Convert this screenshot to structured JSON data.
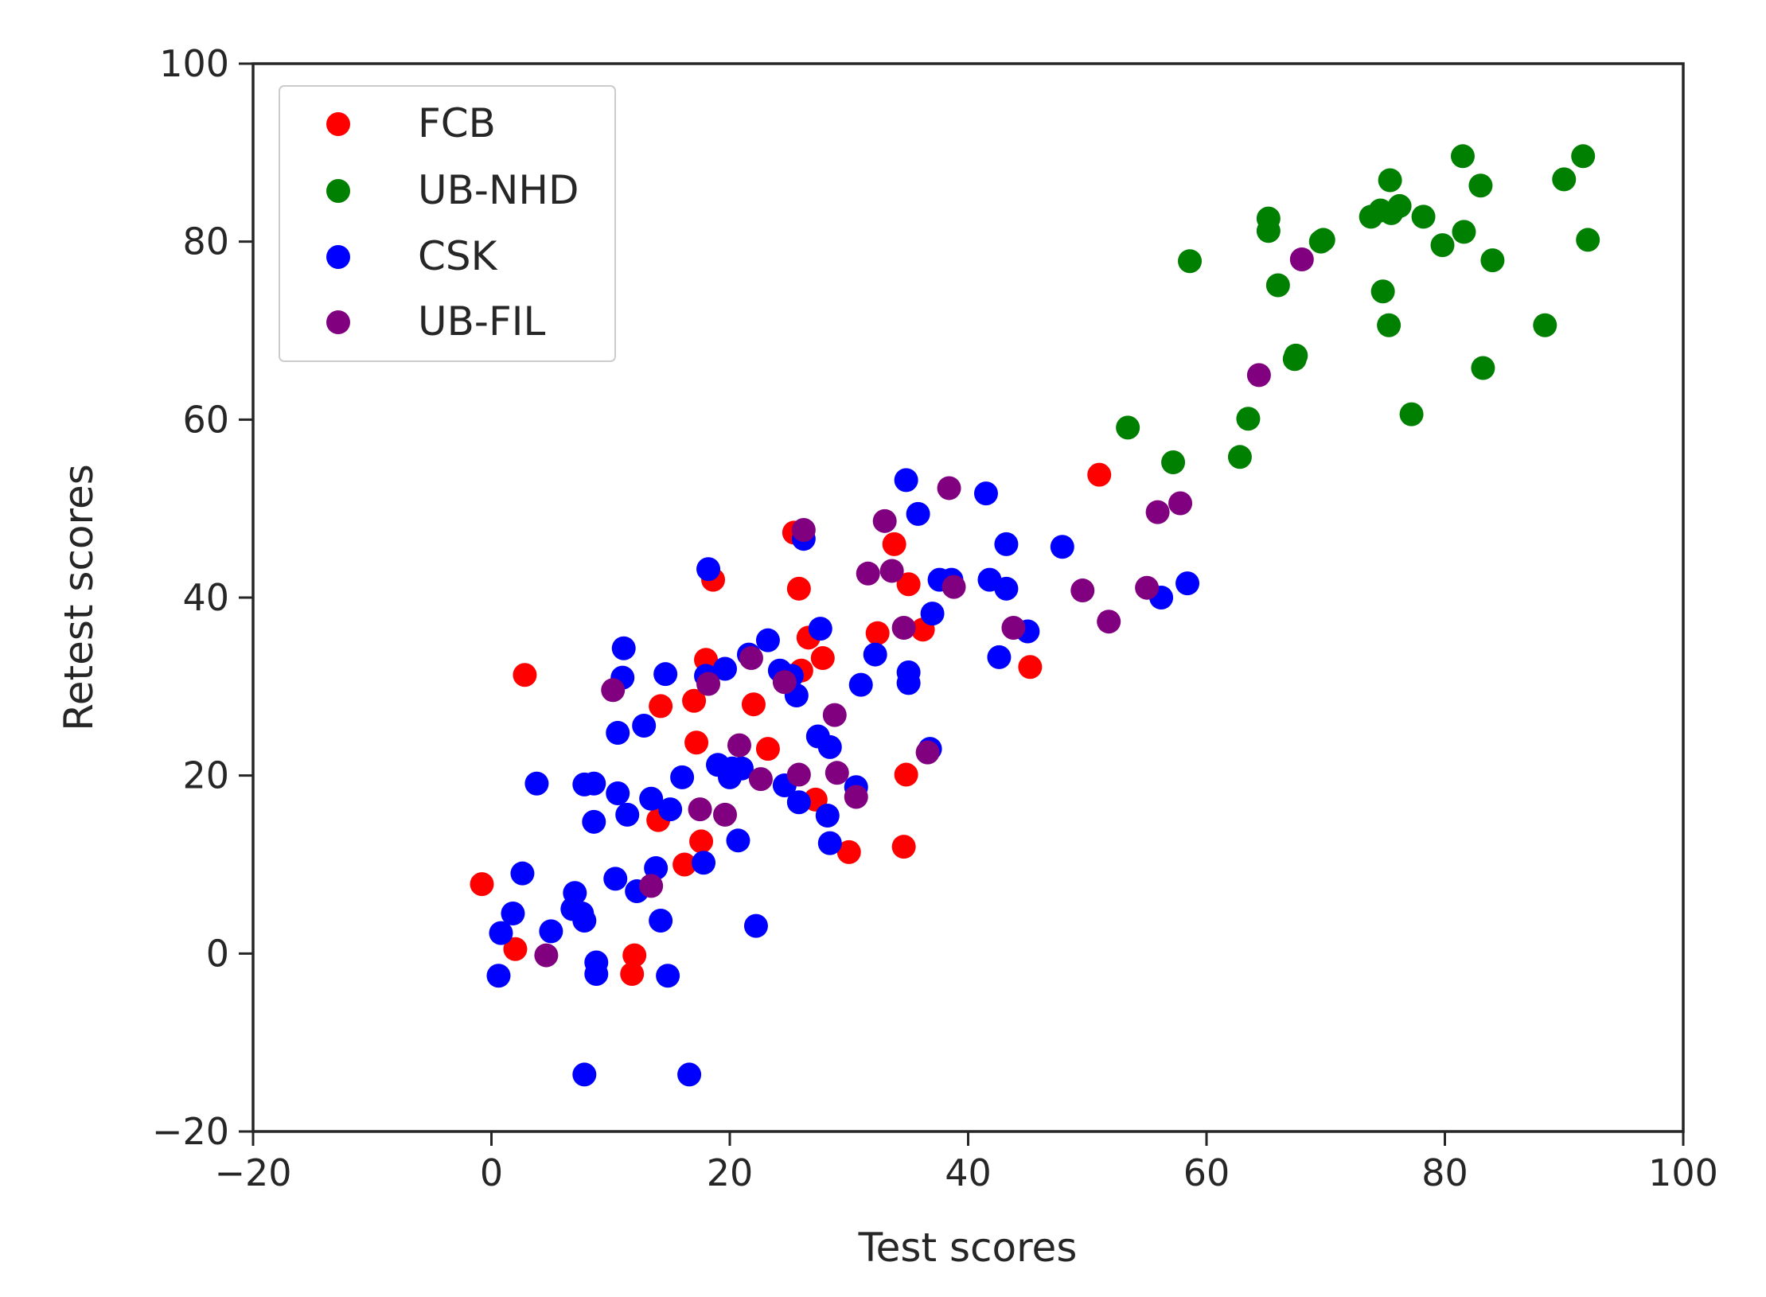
{
  "chart_data": {
    "type": "scatter",
    "title": "",
    "xlabel": "Test scores",
    "ylabel": "Retest scores",
    "xlim": [
      -20,
      100
    ],
    "ylim": [
      -20,
      100
    ],
    "xticks": [
      -20,
      0,
      20,
      40,
      60,
      80,
      100
    ],
    "yticks": [
      -20,
      0,
      20,
      40,
      60,
      80,
      100
    ],
    "xtick_labels": [
      "−20",
      "0",
      "20",
      "40",
      "60",
      "80",
      "100"
    ],
    "ytick_labels": [
      "−20",
      "0",
      "20",
      "40",
      "60",
      "80",
      "100"
    ],
    "grid": false,
    "legend_position": "top-left",
    "series": [
      {
        "name": "FCB",
        "color": "#ff0000",
        "points": [
          [
            -0.8,
            7.8
          ],
          [
            2,
            0.5
          ],
          [
            2.8,
            31.3
          ],
          [
            12,
            -0.2
          ],
          [
            11.8,
            -2.3
          ],
          [
            14,
            15
          ],
          [
            14.2,
            27.8
          ],
          [
            16.2,
            10
          ],
          [
            17,
            28.4
          ],
          [
            17.2,
            23.7
          ],
          [
            17.6,
            12.6
          ],
          [
            18,
            33
          ],
          [
            18.6,
            42
          ],
          [
            22,
            28
          ],
          [
            23.2,
            23
          ],
          [
            25.4,
            47.3
          ],
          [
            25.8,
            41
          ],
          [
            26,
            31.8
          ],
          [
            26.6,
            35.5
          ],
          [
            27.2,
            17.3
          ],
          [
            27.8,
            33.2
          ],
          [
            30,
            11.4
          ],
          [
            32.4,
            36
          ],
          [
            33.8,
            46
          ],
          [
            34.6,
            12
          ],
          [
            34.8,
            20.1
          ],
          [
            35,
            41.5
          ],
          [
            36.2,
            36.4
          ],
          [
            45.2,
            32.2
          ],
          [
            51,
            53.8
          ]
        ]
      },
      {
        "name": "UB-NHD",
        "color": "#008000",
        "points": [
          [
            53.4,
            59.1
          ],
          [
            57.2,
            55.2
          ],
          [
            58.6,
            77.8
          ],
          [
            62.8,
            55.8
          ],
          [
            63.5,
            60.1
          ],
          [
            65.2,
            82.6
          ],
          [
            65.2,
            81.2
          ],
          [
            66,
            75.1
          ],
          [
            67.4,
            66.8
          ],
          [
            67.5,
            67.2
          ],
          [
            69.6,
            80
          ],
          [
            69.8,
            80.2
          ],
          [
            73.8,
            82.8
          ],
          [
            74.6,
            83.5
          ],
          [
            74.8,
            74.4
          ],
          [
            75.5,
            83.2
          ],
          [
            75.3,
            70.6
          ],
          [
            75.4,
            86.9
          ],
          [
            76.2,
            84
          ],
          [
            78.2,
            82.8
          ],
          [
            79.8,
            79.6
          ],
          [
            81.5,
            89.6
          ],
          [
            81.6,
            81.1
          ],
          [
            83,
            86.3
          ],
          [
            83.2,
            65.8
          ],
          [
            84,
            77.9
          ],
          [
            77.2,
            60.6
          ],
          [
            88.4,
            70.6
          ],
          [
            90,
            87
          ],
          [
            91.6,
            89.6
          ],
          [
            92,
            80.2
          ]
        ]
      },
      {
        "name": "CSK",
        "color": "#0000ff",
        "points": [
          [
            0.6,
            -2.5
          ],
          [
            0.8,
            2.3
          ],
          [
            1.8,
            4.5
          ],
          [
            2.6,
            9
          ],
          [
            3.8,
            19.1
          ],
          [
            5,
            2.5
          ],
          [
            6.8,
            5
          ],
          [
            7,
            6.8
          ],
          [
            7.6,
            4.5
          ],
          [
            7.8,
            3.7
          ],
          [
            7.8,
            19
          ],
          [
            7.8,
            -13.6
          ],
          [
            8.6,
            19.1
          ],
          [
            8.6,
            14.8
          ],
          [
            8.8,
            -1
          ],
          [
            8.8,
            -2.3
          ],
          [
            10.4,
            8.4
          ],
          [
            10.6,
            24.8
          ],
          [
            10.6,
            18
          ],
          [
            11,
            31
          ],
          [
            11.1,
            34.3
          ],
          [
            11.4,
            15.6
          ],
          [
            12.2,
            7
          ],
          [
            12.8,
            25.6
          ],
          [
            13.4,
            17.4
          ],
          [
            13.8,
            9.6
          ],
          [
            14.2,
            3.7
          ],
          [
            14.6,
            31.4
          ],
          [
            15,
            16.2
          ],
          [
            14.8,
            -2.5
          ],
          [
            16,
            19.8
          ],
          [
            16.6,
            -13.6
          ],
          [
            17.8,
            10.2
          ],
          [
            18,
            31.2
          ],
          [
            18.2,
            43.2
          ],
          [
            19,
            21.2
          ],
          [
            19.6,
            32
          ],
          [
            20,
            19.8
          ],
          [
            20.2,
            20.8
          ],
          [
            20.7,
            12.7
          ],
          [
            21,
            20.8
          ],
          [
            21.6,
            33.6
          ],
          [
            22.2,
            3.1
          ],
          [
            23.2,
            35.2
          ],
          [
            24.2,
            31.8
          ],
          [
            24.6,
            18.9
          ],
          [
            25.2,
            31.2
          ],
          [
            25.6,
            29
          ],
          [
            25.8,
            17
          ],
          [
            26.2,
            46.6
          ],
          [
            27.4,
            24.4
          ],
          [
            27.6,
            36.5
          ],
          [
            28.2,
            15.5
          ],
          [
            28.4,
            23.2
          ],
          [
            28.4,
            12.4
          ],
          [
            30.6,
            18.7
          ],
          [
            31,
            30.2
          ],
          [
            32.2,
            33.6
          ],
          [
            34.8,
            53.2
          ],
          [
            35,
            31.6
          ],
          [
            35,
            30.4
          ],
          [
            35.8,
            49.4
          ],
          [
            36.8,
            23
          ],
          [
            37,
            38.2
          ],
          [
            37.6,
            42
          ],
          [
            38.6,
            42
          ],
          [
            41.5,
            51.7
          ],
          [
            41.8,
            42
          ],
          [
            42.6,
            33.3
          ],
          [
            43.2,
            46
          ],
          [
            43.2,
            41
          ],
          [
            45,
            36.2
          ],
          [
            47.9,
            45.7
          ],
          [
            56.2,
            40
          ],
          [
            58.4,
            41.6
          ]
        ]
      },
      {
        "name": "UB-FIL",
        "color": "#800080",
        "points": [
          [
            4.6,
            -0.2
          ],
          [
            10.2,
            29.6
          ],
          [
            13.4,
            7.6
          ],
          [
            17.5,
            16.2
          ],
          [
            18.2,
            30.3
          ],
          [
            19.6,
            15.6
          ],
          [
            20.8,
            23.4
          ],
          [
            21.8,
            33.2
          ],
          [
            22.6,
            19.6
          ],
          [
            24.6,
            30.5
          ],
          [
            25.8,
            20.1
          ],
          [
            26.2,
            47.6
          ],
          [
            28.8,
            26.8
          ],
          [
            29,
            20.3
          ],
          [
            30.6,
            17.6
          ],
          [
            31.6,
            42.7
          ],
          [
            33,
            48.6
          ],
          [
            33.6,
            43
          ],
          [
            34.6,
            36.6
          ],
          [
            36.6,
            22.6
          ],
          [
            38.4,
            52.3
          ],
          [
            38.8,
            41.2
          ],
          [
            43.8,
            36.6
          ],
          [
            49.6,
            40.8
          ],
          [
            51.8,
            37.3
          ],
          [
            55,
            41.1
          ],
          [
            55.9,
            49.6
          ],
          [
            57.8,
            50.6
          ],
          [
            64.4,
            65
          ],
          [
            68,
            78
          ]
        ]
      }
    ]
  }
}
